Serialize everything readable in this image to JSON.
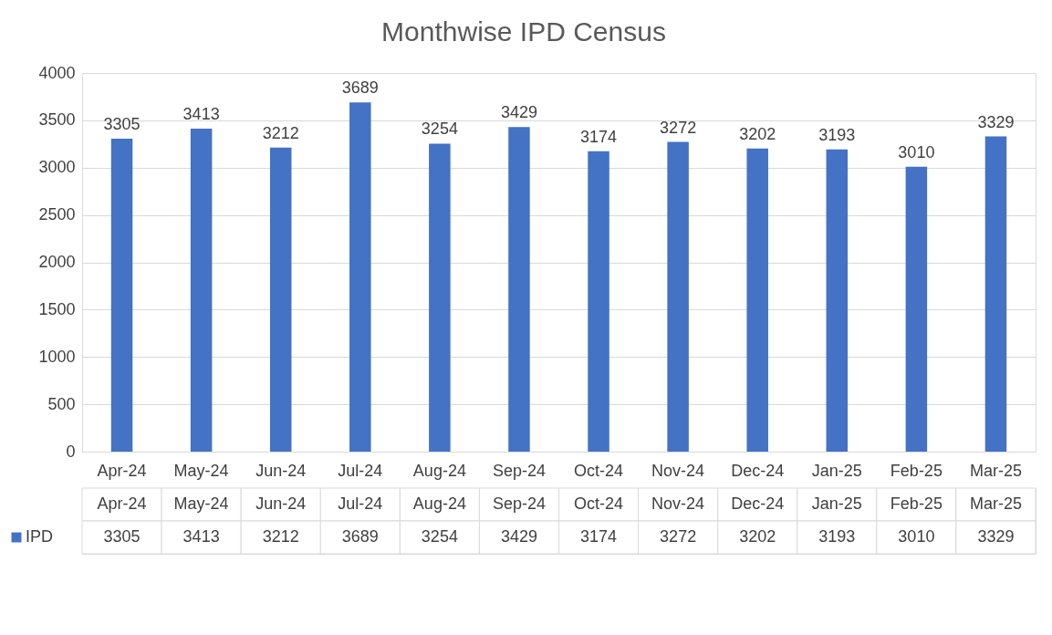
{
  "chart_data": {
    "type": "bar",
    "title": "Monthwise IPD Census",
    "categories": [
      "Apr-24",
      "May-24",
      "Jun-24",
      "Jul-24",
      "Aug-24",
      "Sep-24",
      "Oct-24",
      "Nov-24",
      "Dec-24",
      "Jan-25",
      "Feb-25",
      "Mar-25"
    ],
    "series": [
      {
        "name": "IPD",
        "color": "#4472c4",
        "values": [
          3305,
          3413,
          3212,
          3689,
          3254,
          3429,
          3174,
          3272,
          3202,
          3193,
          3010,
          3329
        ],
        "value_labels": [
          "3305",
          "3413",
          "3212",
          "3689",
          "3254",
          "3429",
          "3174",
          "3272",
          "3202",
          "3193",
          "3010",
          "3329"
        ]
      }
    ],
    "ylim": [
      0,
      4000
    ],
    "yticks": [
      0,
      500,
      1000,
      1500,
      2000,
      2500,
      3000,
      3500,
      4000
    ],
    "grid": "y",
    "legend": "bottom",
    "annotations": [
      "3305",
      "3413",
      "3212",
      "3689",
      "3254",
      "3429",
      "3174",
      "3272",
      "3202",
      "3193",
      "3010",
      "3329"
    ]
  }
}
